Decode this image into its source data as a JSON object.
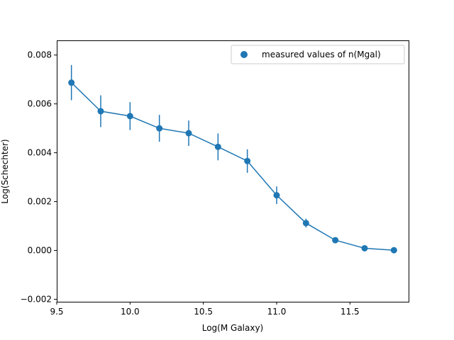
{
  "chart_data": {
    "type": "line",
    "title": "",
    "xlabel": "Log(M Galaxy)",
    "ylabel": "Log(Schechter)",
    "xlim": [
      9.5,
      11.9
    ],
    "ylim": [
      -0.0021,
      0.0086
    ],
    "xticks": [
      "9.5",
      "10.0",
      "10.5",
      "11.0",
      "11.5"
    ],
    "xtick_values": [
      9.5,
      10.0,
      10.5,
      11.0,
      11.5
    ],
    "yticks": [
      "−0.002",
      "0.000",
      "0.002",
      "0.004",
      "0.006",
      "0.008"
    ],
    "ytick_values": [
      -0.002,
      0.0,
      0.002,
      0.004,
      0.006,
      0.008
    ],
    "grid": false,
    "legend_position": "top-right",
    "series": [
      {
        "name": "measured values of n(Mgal)",
        "color": "#1f77b4",
        "marker": "circle",
        "x": [
          9.6,
          9.8,
          10.0,
          10.2,
          10.4,
          10.6,
          10.8,
          11.0,
          11.2,
          11.4,
          11.6,
          11.8
        ],
        "y": [
          0.00687,
          0.0057,
          0.0055,
          0.005,
          0.0048,
          0.00424,
          0.00366,
          0.00226,
          0.00112,
          0.00042,
          9e-05,
          1e-05
        ],
        "yerr": [
          0.00072,
          0.00065,
          0.00057,
          0.00055,
          0.00052,
          0.00055,
          0.00048,
          0.00036,
          0.00018,
          3e-05,
          1e-05,
          0.0
        ]
      }
    ]
  }
}
